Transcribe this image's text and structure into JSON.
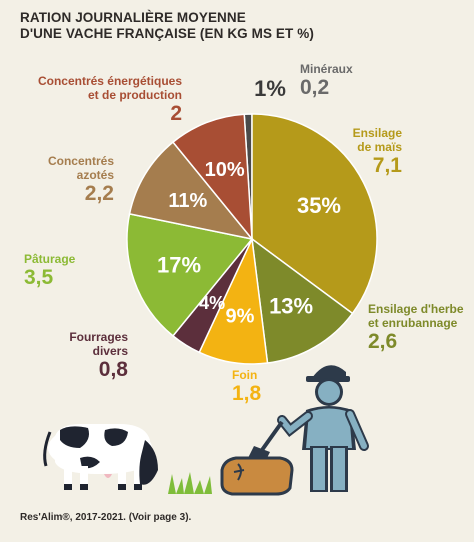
{
  "title": {
    "line1": "RATION JOURNALIÈRE MOYENNE",
    "line2": "D'UNE VACHE FRANÇAISE (EN KG MS ET %)"
  },
  "source": "Res'Alim®, 2017-2021. (Voir page 3).",
  "chart_data": {
    "type": "pie",
    "title": "RATION JOURNALIÈRE MOYENNE D'UNE VACHE FRANÇAISE (EN KG MS ET %)",
    "unit": "kg MS",
    "slices": [
      {
        "label_lines": [
          "Ensilage",
          "de maïs"
        ],
        "value": 7.1,
        "value_label": "7,1",
        "percent_label": "35%",
        "color": "#b59a1a"
      },
      {
        "label_lines": [
          "Ensilage d'herbe",
          "et enrubannage"
        ],
        "value": 2.6,
        "value_label": "2,6",
        "percent_label": "13%",
        "color": "#7e8a2a"
      },
      {
        "label_lines": [
          "Foin"
        ],
        "value": 1.8,
        "value_label": "1,8",
        "percent_label": "9%",
        "color": "#f3b312"
      },
      {
        "label_lines": [
          "Fourrages",
          "divers"
        ],
        "value": 0.8,
        "value_label": "0,8",
        "percent_label": "4%",
        "color": "#5c2f3c"
      },
      {
        "label_lines": [
          "Pâturage"
        ],
        "value": 3.5,
        "value_label": "3,5",
        "percent_label": "17%",
        "color": "#8cba35"
      },
      {
        "label_lines": [
          "Concentrés",
          "azotés"
        ],
        "value": 2.2,
        "value_label": "2,2",
        "percent_label": "11%",
        "color": "#a57d4e"
      },
      {
        "label_lines": [
          "Concentrés énergétiques",
          "et de production"
        ],
        "value": 2.0,
        "value_label": "2",
        "percent_label": "10%",
        "color": "#a84e34"
      },
      {
        "label_lines": [
          "Minéraux"
        ],
        "value": 0.2,
        "value_label": "0,2",
        "percent_label": "1%",
        "color": "#4a4a4a"
      }
    ]
  }
}
